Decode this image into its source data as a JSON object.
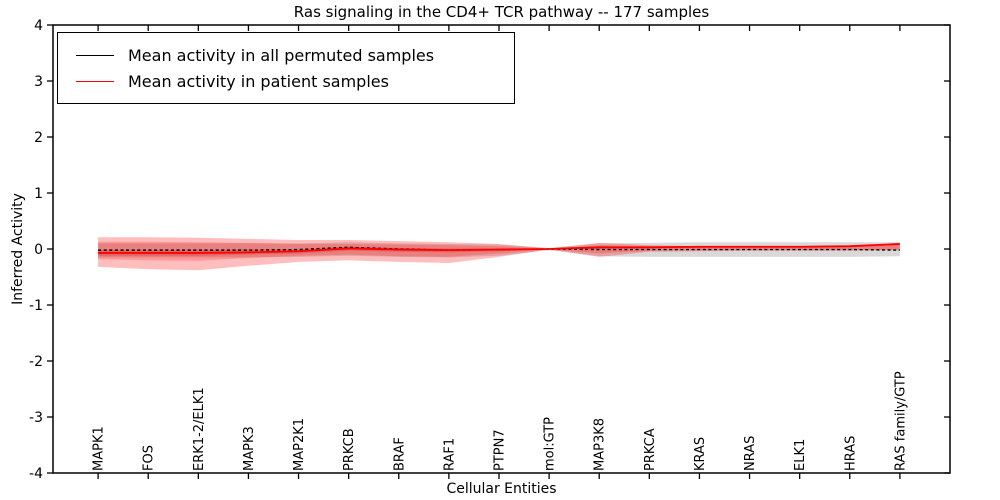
{
  "colors": {
    "background": "#ffffff",
    "axis": "#000000",
    "permuted_line": "#000000",
    "patient_line": "#ff0000",
    "patient_band": "#ff0000",
    "permuted_band": "#aaaaaa"
  },
  "chart_data": {
    "type": "line",
    "title": "Ras signaling in the CD4+ TCR pathway -- 177 samples",
    "xlabel": "Cellular Entities",
    "ylabel": "Inferred Activity",
    "ylim": [
      -4,
      4
    ],
    "yticks": [
      -4,
      -3,
      -2,
      -1,
      0,
      1,
      2,
      3,
      4
    ],
    "xlim": [
      -0.9,
      17.0
    ],
    "grid": false,
    "legend_position": "upper left",
    "categories": [
      "MAPK1",
      "FOS",
      "ERK1-2/ELK1",
      "MAPK3",
      "MAP2K1",
      "PRKCB",
      "BRAF",
      "RAF1",
      "PTPN7",
      "mol:GTP",
      "MAP3K8",
      "PRKCA",
      "KRAS",
      "NRAS",
      "ELK1",
      "HRAS",
      "RAS family/GTP"
    ],
    "series": [
      {
        "name": "Mean activity in all permuted samples",
        "color": "#000000",
        "style": "dashed",
        "values": [
          -0.02,
          -0.02,
          -0.02,
          -0.02,
          -0.01,
          0.03,
          0.0,
          -0.02,
          -0.01,
          0.0,
          -0.01,
          -0.01,
          -0.01,
          -0.01,
          -0.01,
          -0.01,
          -0.02
        ]
      },
      {
        "name": "Mean activity in patient samples",
        "color": "#ff0000",
        "style": "solid",
        "values": [
          -0.07,
          -0.07,
          -0.07,
          -0.06,
          -0.04,
          0.01,
          -0.01,
          -0.02,
          -0.01,
          0.0,
          0.03,
          0.03,
          0.04,
          0.04,
          0.04,
          0.05,
          0.09
        ]
      }
    ],
    "bands": [
      {
        "name": "permuted-samples-spread",
        "color": "#aaaaaa",
        "opacity": 0.45,
        "upper": [
          0.1,
          0.1,
          0.1,
          0.1,
          0.1,
          0.12,
          0.1,
          0.09,
          0.08,
          0.02,
          0.1,
          0.11,
          0.12,
          0.12,
          0.12,
          0.12,
          0.12
        ],
        "lower": [
          -0.15,
          -0.15,
          -0.15,
          -0.15,
          -0.14,
          -0.12,
          -0.14,
          -0.15,
          -0.12,
          -0.02,
          -0.13,
          -0.14,
          -0.14,
          -0.14,
          -0.14,
          -0.14,
          -0.13
        ]
      },
      {
        "name": "patient-spread-outer",
        "color": "#ff0000",
        "opacity": 0.26,
        "upper": [
          0.21,
          0.21,
          0.2,
          0.18,
          0.16,
          0.16,
          0.14,
          0.12,
          0.09,
          0.01,
          0.11,
          0.07,
          0.05,
          0.05,
          0.05,
          0.05,
          0.1
        ],
        "lower": [
          -0.32,
          -0.36,
          -0.38,
          -0.3,
          -0.23,
          -0.2,
          -0.23,
          -0.25,
          -0.14,
          -0.01,
          -0.14,
          -0.05,
          -0.04,
          -0.03,
          -0.03,
          -0.03,
          -0.02
        ]
      },
      {
        "name": "patient-spread-mid",
        "color": "#ff0000",
        "opacity": 0.2,
        "upper": [
          0.13,
          0.13,
          0.12,
          0.11,
          0.09,
          0.09,
          0.08,
          0.07,
          0.05,
          0.01,
          0.07,
          0.05,
          0.04,
          0.03,
          0.03,
          0.04,
          0.08
        ],
        "lower": [
          -0.18,
          -0.2,
          -0.21,
          -0.16,
          -0.12,
          -0.1,
          -0.13,
          -0.14,
          -0.08,
          -0.01,
          -0.08,
          -0.03,
          -0.02,
          -0.02,
          -0.02,
          -0.02,
          -0.01
        ]
      },
      {
        "name": "patient-spread-core",
        "color": "#cc0000",
        "opacity": 0.22,
        "upper": [
          -0.02,
          -0.02,
          -0.02,
          -0.01,
          -0.01,
          0.04,
          0.02,
          0.01,
          0.01,
          0.0,
          0.05,
          0.04,
          0.05,
          0.05,
          0.05,
          0.06,
          0.1
        ],
        "lower": [
          -0.12,
          -0.12,
          -0.12,
          -0.1,
          -0.08,
          -0.03,
          -0.05,
          -0.06,
          -0.04,
          0.0,
          0.0,
          0.01,
          0.02,
          0.02,
          0.02,
          0.03,
          0.07
        ]
      }
    ],
    "legend": [
      {
        "label": "Mean activity in all permuted samples",
        "color": "#000000"
      },
      {
        "label": "Mean activity in patient samples",
        "color": "#ff0000"
      }
    ]
  }
}
